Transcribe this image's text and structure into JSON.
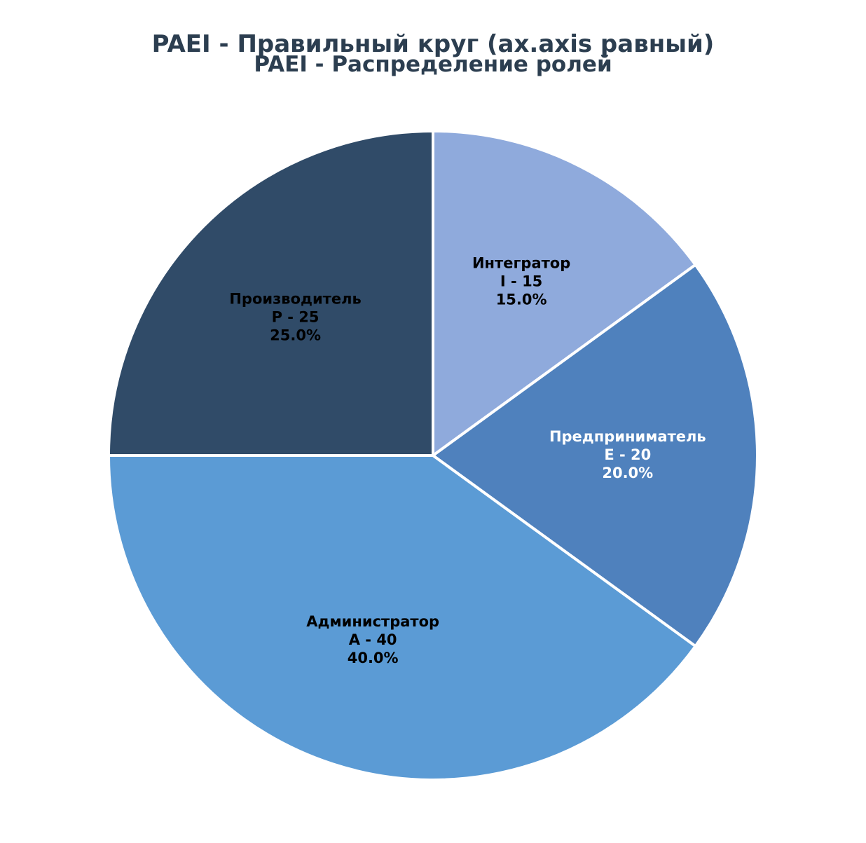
{
  "chart_data": {
    "type": "pie",
    "title": "PAEI - Правильный круг (ax.axis равный)",
    "subtitle": "PAEI - Распределение ролей",
    "start_angle_deg": 90,
    "direction": "clockwise",
    "slices": [
      {
        "role": "Интегратор",
        "code_line": "I - 15",
        "value": 15,
        "percent_label": "15.0%",
        "color": "#8faadc",
        "label_color": "#000000"
      },
      {
        "role": "Предприниматель",
        "code_line": "E - 20",
        "value": 20,
        "percent_label": "20.0%",
        "color": "#4f81bd",
        "label_color": "#ffffff"
      },
      {
        "role": "Администратор",
        "code_line": "A - 40",
        "value": 40,
        "percent_label": "40.0%",
        "color": "#5b9bd5",
        "label_color": "#000000"
      },
      {
        "role": "Производитель",
        "code_line": "P - 25",
        "value": 25,
        "percent_label": "25.0%",
        "color": "#304b68",
        "label_color": "#000000"
      }
    ],
    "slice_border_color": "#ffffff",
    "title_color": "#2c3e50"
  }
}
